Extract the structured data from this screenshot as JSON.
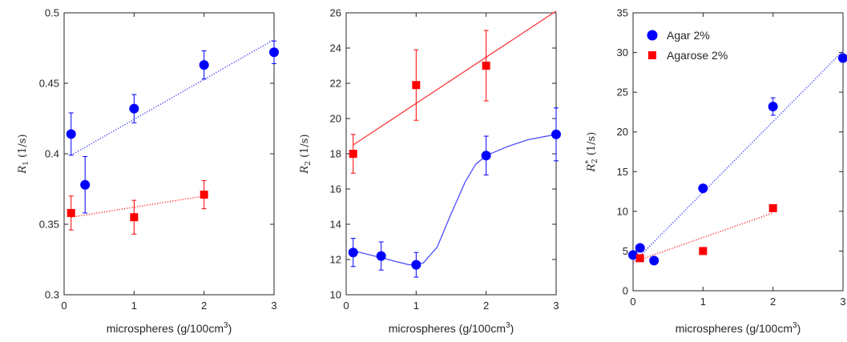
{
  "colors": {
    "blue": "#0000ff",
    "red": "#ff0000",
    "axis": "#262626",
    "fit_blue": "#4d4dff",
    "fit_red": "#ff3b3b"
  },
  "chart_data": [
    {
      "type": "scatter",
      "xlabel": "microspheres (g/100cm",
      "xlabel_sup": "3",
      "xlabel_end": ")",
      "ylabel": "R",
      "ylabel_sub": "1",
      "ylabel_units": " (1/s)",
      "xlim": [
        0,
        3
      ],
      "ylim": [
        0.3,
        0.5
      ],
      "xticks": [
        0,
        1,
        2,
        3
      ],
      "yticks": [
        0.3,
        0.35,
        0.4,
        0.45,
        0.5
      ],
      "ytick_labels": [
        "0.3",
        "0.35",
        "0.4",
        "0.45",
        "0.5"
      ],
      "grid": false,
      "series": [
        {
          "color": "blue",
          "marker": "circle",
          "points": [
            {
              "x": 0.1,
              "y": 0.414,
              "err": 0.015
            },
            {
              "x": 0.3,
              "y": 0.378,
              "err": 0.02
            },
            {
              "x": 1.0,
              "y": 0.432,
              "err": 0.01
            },
            {
              "x": 2.0,
              "y": 0.463,
              "err": 0.01
            },
            {
              "x": 3.0,
              "y": 0.472,
              "err": 0.008
            }
          ],
          "fit": {
            "style": "dotted",
            "points": [
              [
                0.1,
                0.399
              ],
              [
                3.0,
                0.481
              ]
            ]
          }
        },
        {
          "color": "red",
          "marker": "square",
          "points": [
            {
              "x": 0.1,
              "y": 0.358,
              "err": 0.012
            },
            {
              "x": 1.0,
              "y": 0.355,
              "err": 0.012
            },
            {
              "x": 2.0,
              "y": 0.371,
              "err": 0.01
            }
          ],
          "fit": {
            "style": "dotted",
            "points": [
              [
                0.1,
                0.355
              ],
              [
                2.0,
                0.37
              ]
            ]
          }
        }
      ]
    },
    {
      "type": "scatter",
      "xlabel": "microspheres (g/100cm",
      "xlabel_sup": "3",
      "xlabel_end": ")",
      "ylabel": "R",
      "ylabel_sub": "2",
      "ylabel_units": " (1/s)",
      "xlim": [
        0,
        3
      ],
      "ylim": [
        10,
        26
      ],
      "xticks": [
        0,
        1,
        2,
        3
      ],
      "yticks": [
        10,
        12,
        14,
        16,
        18,
        20,
        22,
        24,
        26
      ],
      "ytick_labels": [
        "10",
        "12",
        "14",
        "16",
        "18",
        "20",
        "22",
        "24",
        "26"
      ],
      "grid": false,
      "series": [
        {
          "color": "blue",
          "marker": "circle",
          "points": [
            {
              "x": 0.1,
              "y": 12.4,
              "err": 0.8
            },
            {
              "x": 0.5,
              "y": 12.2,
              "err": 0.8
            },
            {
              "x": 1.0,
              "y": 11.7,
              "err": 0.7
            },
            {
              "x": 2.0,
              "y": 17.9,
              "err": 1.1
            },
            {
              "x": 3.0,
              "y": 19.1,
              "err": 1.5
            }
          ],
          "fit": {
            "style": "solid",
            "points": [
              [
                0.1,
                12.5
              ],
              [
                0.3,
                12.3
              ],
              [
                0.5,
                12.1
              ],
              [
                0.7,
                11.9
              ],
              [
                0.9,
                11.7
              ],
              [
                1.1,
                11.8
              ],
              [
                1.3,
                12.7
              ],
              [
                1.5,
                14.6
              ],
              [
                1.7,
                16.4
              ],
              [
                1.85,
                17.4
              ],
              [
                2.0,
                17.9
              ],
              [
                2.3,
                18.4
              ],
              [
                2.6,
                18.8
              ],
              [
                3.0,
                19.1
              ]
            ]
          }
        },
        {
          "color": "red",
          "marker": "square",
          "points": [
            {
              "x": 0.1,
              "y": 18.0,
              "err": 1.1
            },
            {
              "x": 1.0,
              "y": 21.9,
              "err": 2.0
            },
            {
              "x": 2.0,
              "y": 23.0,
              "err": 2.0
            }
          ],
          "fit": {
            "style": "solid",
            "points": [
              [
                0.1,
                18.5
              ],
              [
                3.0,
                26.1
              ]
            ]
          }
        }
      ]
    },
    {
      "type": "scatter",
      "xlabel": "microspheres (g/100cm",
      "xlabel_sup": "3",
      "xlabel_end": ")",
      "ylabel": "R",
      "ylabel_sub": "2",
      "ylabel_sup": "*",
      "ylabel_units": " (1/s)",
      "xlim": [
        0,
        3
      ],
      "ylim": [
        0,
        35
      ],
      "xticks": [
        0,
        1,
        2,
        3
      ],
      "yticks": [
        0,
        5,
        10,
        15,
        20,
        25,
        30,
        35
      ],
      "ytick_labels": [
        "0",
        "5",
        "10",
        "15",
        "20",
        "25",
        "30",
        "35"
      ],
      "grid": false,
      "legend": {
        "placement": "top-left",
        "entries": [
          {
            "label": "Agar 2%",
            "color": "blue",
            "marker": "circle"
          },
          {
            "label": "Agarose 2%",
            "color": "red",
            "marker": "square"
          }
        ]
      },
      "series": [
        {
          "name": "Agar 2%",
          "color": "blue",
          "marker": "circle",
          "points": [
            {
              "x": 0.0,
              "y": 4.5,
              "err": 0.3
            },
            {
              "x": 0.1,
              "y": 5.4,
              "err": 0.4
            },
            {
              "x": 0.3,
              "y": 3.8,
              "err": 0.3
            },
            {
              "x": 1.0,
              "y": 12.9,
              "err": 0.4
            },
            {
              "x": 2.0,
              "y": 23.2,
              "err": 1.1
            },
            {
              "x": 3.0,
              "y": 29.3,
              "err": 0.3
            }
          ],
          "fit": {
            "style": "dotted",
            "points": [
              [
                0.0,
                3.5
              ],
              [
                3.0,
                30.2
              ]
            ]
          }
        },
        {
          "name": "Agarose 2%",
          "color": "red",
          "marker": "square",
          "points": [
            {
              "x": 0.1,
              "y": 4.1,
              "err": 0.3
            },
            {
              "x": 1.0,
              "y": 5.0,
              "err": 0.3
            },
            {
              "x": 2.0,
              "y": 10.4,
              "err": 0.3
            }
          ],
          "fit": {
            "style": "dotted",
            "points": [
              [
                0.0,
                3.6
              ],
              [
                2.0,
                9.8
              ]
            ]
          }
        }
      ]
    }
  ]
}
